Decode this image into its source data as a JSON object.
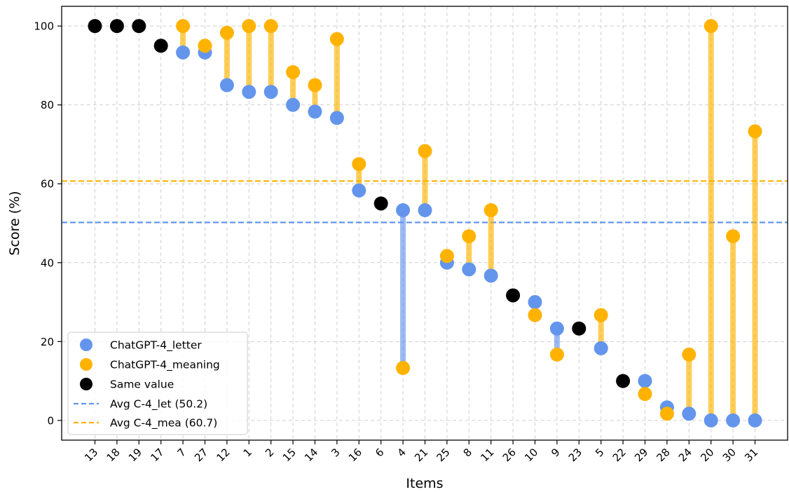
{
  "chart_data": {
    "type": "scatter",
    "xlabel": "Items",
    "ylabel": "Score (%)",
    "ylim": [
      -5,
      105
    ],
    "yticks": [
      0,
      20,
      40,
      60,
      80,
      100
    ],
    "grid": true,
    "legend_position": "lower-left",
    "categories": [
      "13",
      "18",
      "19",
      "17",
      "7",
      "27",
      "12",
      "1",
      "2",
      "15",
      "14",
      "3",
      "16",
      "6",
      "4",
      "21",
      "25",
      "8",
      "11",
      "26",
      "10",
      "9",
      "23",
      "5",
      "22",
      "29",
      "28",
      "24",
      "20",
      "30",
      "31"
    ],
    "series": [
      {
        "name": "ChatGPT-4_letter",
        "color": "#6495ED",
        "values": [
          100,
          100,
          100,
          95,
          93.3,
          93.3,
          85,
          83.3,
          83.3,
          80,
          78.3,
          76.7,
          58.3,
          55,
          53.3,
          53.3,
          40,
          38.3,
          36.7,
          31.7,
          30,
          23.3,
          23.3,
          18.3,
          10,
          10,
          3.3,
          1.7,
          0,
          0,
          0
        ]
      },
      {
        "name": "ChatGPT-4_meaning",
        "color": "#FFB300",
        "values": [
          100,
          100,
          100,
          95,
          100,
          95,
          98.3,
          100,
          100,
          88.3,
          85,
          96.7,
          65,
          55,
          13.3,
          68.3,
          41.7,
          46.7,
          53.3,
          31.7,
          26.7,
          16.7,
          23.3,
          26.7,
          10,
          6.7,
          1.7,
          16.7,
          100,
          46.7,
          73.3
        ]
      }
    ],
    "same_value_label": "Same value",
    "same_value_color": "#000000",
    "reference_lines": [
      {
        "name": "Avg C-4_let (50.2)",
        "value": 50.2,
        "color": "#6495ED"
      },
      {
        "name": "Avg C-4_mea (60.7)",
        "value": 60.7,
        "color": "#FFB300"
      }
    ]
  }
}
